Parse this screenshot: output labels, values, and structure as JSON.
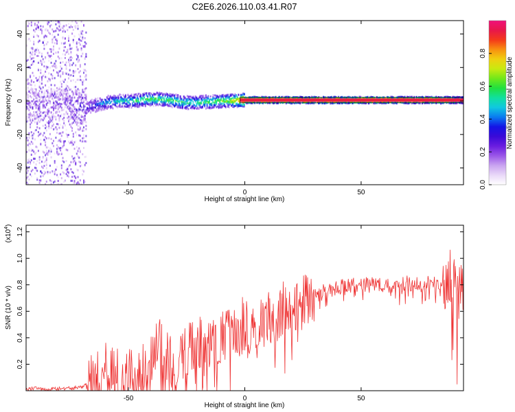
{
  "title": "C2E6.2026.110.03.41.R07",
  "chart_data": [
    {
      "type": "heatmap",
      "name": "spectrogram",
      "xlabel": "Height of straight line (km)",
      "ylabel": "Frequency (Hz)",
      "xlim": [
        -94,
        94
      ],
      "ylim": [
        -50,
        48
      ],
      "x_ticks": [
        -50,
        0,
        50
      ],
      "y_ticks": [
        -40,
        -20,
        0,
        20,
        40
      ],
      "x_tick_labels": [
        "-50",
        "0",
        "50"
      ],
      "y_tick_labels": [
        "-40",
        "-20",
        "0",
        "20",
        "40"
      ],
      "colorbar": {
        "label": "Normalized spectral amplitude",
        "range": [
          0,
          1
        ],
        "ticks": [
          0.0,
          0.2,
          0.4,
          0.6,
          0.8
        ],
        "tick_labels": [
          "0.0",
          "0.2",
          "0.4",
          "0.6",
          "0.8"
        ],
        "colors": [
          "#ffffff",
          "#e9d8f8",
          "#c9a3f0",
          "#9b57e8",
          "#6a1de0",
          "#3a0ad8",
          "#1414e6",
          "#0a7bf0",
          "#10c8e0",
          "#10e0a0",
          "#20e040",
          "#70e81a",
          "#c8ea10",
          "#f0d010",
          "#f89010",
          "#f43a1a",
          "#e8174a",
          "#f0107a"
        ]
      },
      "ridge": {
        "x": [
          -94,
          -85,
          -78,
          -70,
          -66,
          -60,
          -54,
          -48,
          -42,
          -36,
          -30,
          -26,
          -22,
          -15,
          -8,
          0,
          10,
          20,
          50,
          85,
          94
        ],
        "freq": [
          -2,
          -3,
          -1,
          -4,
          -3,
          -1,
          0,
          0,
          1,
          1,
          0,
          -1,
          -1,
          -0.5,
          0,
          0.5,
          0.5,
          0.5,
          0.5,
          0.5,
          0.5
        ],
        "amplitude": [
          0.2,
          0.2,
          0.2,
          0.3,
          0.35,
          0.45,
          0.5,
          0.55,
          0.6,
          0.6,
          0.6,
          0.55,
          0.55,
          0.6,
          0.65,
          0.95,
          0.95,
          0.95,
          0.95,
          0.9,
          0.7
        ]
      }
    },
    {
      "type": "line",
      "name": "snr",
      "xlabel": "Height of straight line (km)",
      "ylabel": "SNR (10 * v/v)",
      "y_multiplier": "(x10^4)",
      "y_multiplier_base": "(x10",
      "y_multiplier_exp": "4",
      "y_multiplier_close": ")",
      "xlim": [
        -94,
        94
      ],
      "ylim": [
        0,
        1.25
      ],
      "x_ticks": [
        -50,
        0,
        50
      ],
      "y_ticks": [
        0.2,
        0.4,
        0.6,
        0.8,
        1.0,
        1.2
      ],
      "x_tick_labels": [
        "-50",
        "0",
        "50"
      ],
      "y_tick_labels": [
        "0.2",
        "0.4",
        "0.6",
        "0.8",
        "1.0",
        "1.2"
      ],
      "line_color": "#ee3030",
      "series": [
        {
          "name": "SNR",
          "x": [
            -94,
            -90,
            -85,
            -80,
            -75,
            -70,
            -68,
            -65,
            -62,
            -60,
            -57,
            -55,
            -52,
            -50,
            -47,
            -45,
            -42,
            -40,
            -37,
            -35,
            -32,
            -30,
            -27,
            -25,
            -22,
            -20,
            -17,
            -15,
            -12,
            -10,
            -7,
            -5,
            -2,
            0,
            3,
            5,
            8,
            10,
            13,
            15,
            18,
            20,
            22,
            25,
            27,
            30,
            33,
            35,
            40,
            45,
            50,
            55,
            60,
            65,
            70,
            75,
            80,
            83,
            85,
            87,
            88,
            89,
            90,
            91,
            92,
            93,
            94
          ],
          "y": [
            0.01,
            0.02,
            0.01,
            0.02,
            0.02,
            0.03,
            0.05,
            0.1,
            0.12,
            0.15,
            0.12,
            0.1,
            0.08,
            0.1,
            0.12,
            0.14,
            0.15,
            0.2,
            0.35,
            0.25,
            0.2,
            0.18,
            0.25,
            0.3,
            0.3,
            0.35,
            0.32,
            0.35,
            0.4,
            0.42,
            0.45,
            0.45,
            0.48,
            0.5,
            0.5,
            0.52,
            0.55,
            0.55,
            0.58,
            0.6,
            0.62,
            0.65,
            0.66,
            0.68,
            0.7,
            0.72,
            0.74,
            0.76,
            0.78,
            0.8,
            0.8,
            0.8,
            0.8,
            0.8,
            0.81,
            0.8,
            0.81,
            0.82,
            0.83,
            0.85,
            0.9,
            0.7,
            0.85,
            0.6,
            0.8,
            0.78,
            0.8
          ]
        }
      ]
    }
  ]
}
